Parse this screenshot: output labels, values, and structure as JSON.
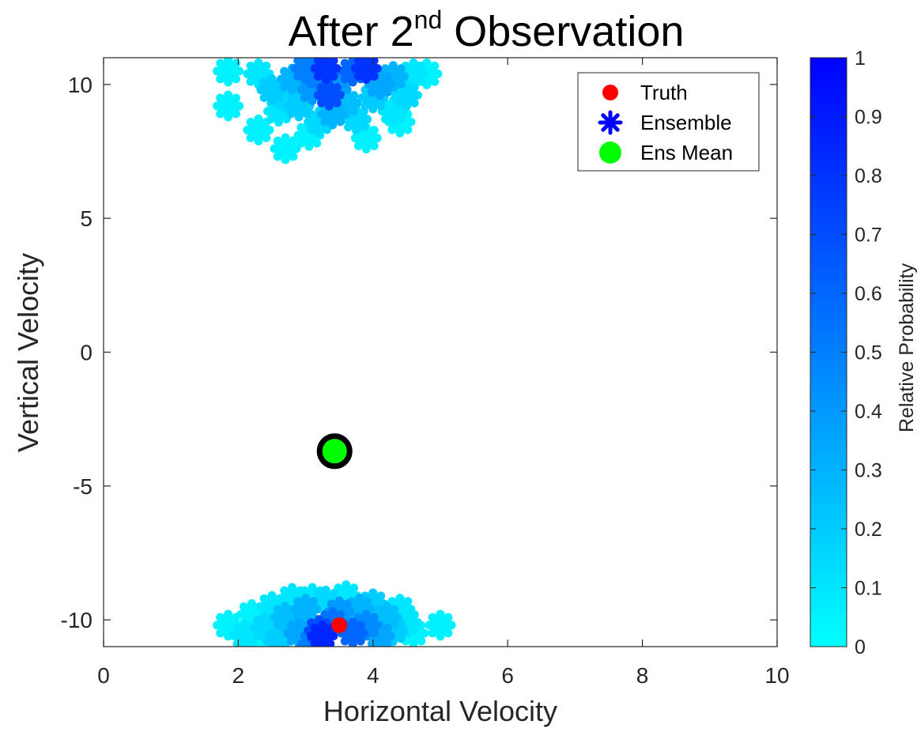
{
  "chart_data": {
    "type": "scatter",
    "title": "After 2",
    "title_superscript": "nd",
    "title_suffix": " Observation",
    "xlabel": "Horizontal Velocity",
    "ylabel": "Vertical Velocity",
    "xlim": [
      0,
      10
    ],
    "ylim": [
      -11,
      11
    ],
    "xticks": [
      0,
      2,
      4,
      6,
      8,
      10
    ],
    "yticks": [
      -10,
      -5,
      0,
      5,
      10
    ],
    "xtick_labels": [
      "0",
      "2",
      "4",
      "6",
      "8",
      "10"
    ],
    "ytick_labels": [
      "-10",
      "-5",
      "0",
      "5",
      "10"
    ],
    "grid": false,
    "legend_position": "top-right",
    "colorbar": {
      "label": "Relative Probability",
      "range": [
        0,
        1
      ],
      "ticks": [
        0,
        0.1,
        0.2,
        0.3,
        0.4,
        0.5,
        0.6,
        0.7,
        0.8,
        0.9,
        1
      ],
      "tick_labels": [
        "0",
        "0.1",
        "0.2",
        "0.3",
        "0.4",
        "0.5",
        "0.6",
        "0.7",
        "0.8",
        "0.9",
        "1"
      ],
      "color_low": "#00ffff",
      "color_high": "#0000ff"
    },
    "series": [
      {
        "name": "Truth",
        "marker": "circle",
        "color": "#ff0000",
        "points": [
          {
            "x": 3.5,
            "y": -10.2
          }
        ]
      },
      {
        "name": "Ensemble",
        "marker": "asterisk",
        "color": "#0000ff",
        "points": [
          {
            "x": 1.85,
            "y": 10.5,
            "p": 0.05
          },
          {
            "x": 1.85,
            "y": 9.2,
            "p": 0.05
          },
          {
            "x": 2.3,
            "y": 10.4,
            "p": 0.1
          },
          {
            "x": 2.5,
            "y": 9.8,
            "p": 0.2
          },
          {
            "x": 2.3,
            "y": 8.3,
            "p": 0.05
          },
          {
            "x": 2.7,
            "y": 7.6,
            "p": 0.05
          },
          {
            "x": 2.6,
            "y": 9.0,
            "p": 0.1
          },
          {
            "x": 2.8,
            "y": 10.2,
            "p": 0.3
          },
          {
            "x": 2.9,
            "y": 9.2,
            "p": 0.2
          },
          {
            "x": 3.0,
            "y": 10.6,
            "p": 0.5
          },
          {
            "x": 3.05,
            "y": 8.1,
            "p": 0.05
          },
          {
            "x": 3.1,
            "y": 9.8,
            "p": 0.4
          },
          {
            "x": 3.2,
            "y": 8.6,
            "p": 0.15
          },
          {
            "x": 3.3,
            "y": 10.6,
            "p": 0.8
          },
          {
            "x": 3.35,
            "y": 9.6,
            "p": 0.7
          },
          {
            "x": 3.4,
            "y": 8.9,
            "p": 0.3
          },
          {
            "x": 3.5,
            "y": 10.1,
            "p": 0.4
          },
          {
            "x": 3.6,
            "y": 9.3,
            "p": 0.25
          },
          {
            "x": 3.7,
            "y": 10.5,
            "p": 0.6
          },
          {
            "x": 3.75,
            "y": 8.7,
            "p": 0.15
          },
          {
            "x": 3.9,
            "y": 10.6,
            "p": 0.8
          },
          {
            "x": 3.9,
            "y": 8.0,
            "p": 0.05
          },
          {
            "x": 4.0,
            "y": 9.5,
            "p": 0.2
          },
          {
            "x": 4.1,
            "y": 10.0,
            "p": 0.35
          },
          {
            "x": 4.3,
            "y": 9.0,
            "p": 0.1
          },
          {
            "x": 4.3,
            "y": 10.3,
            "p": 0.3
          },
          {
            "x": 4.5,
            "y": 9.6,
            "p": 0.15
          },
          {
            "x": 4.6,
            "y": 10.4,
            "p": 0.1
          },
          {
            "x": 4.8,
            "y": 10.4,
            "p": 0.05
          },
          {
            "x": 4.4,
            "y": 8.6,
            "p": 0.05
          },
          {
            "x": 3.2,
            "y": 10.3,
            "p": 0.5
          },
          {
            "x": 2.7,
            "y": 9.5,
            "p": 0.15
          },
          {
            "x": 1.85,
            "y": -10.2,
            "p": 0.05
          },
          {
            "x": 2.1,
            "y": -10.6,
            "p": 0.1
          },
          {
            "x": 2.2,
            "y": -9.8,
            "p": 0.05
          },
          {
            "x": 2.4,
            "y": -10.3,
            "p": 0.15
          },
          {
            "x": 2.5,
            "y": -9.5,
            "p": 0.1
          },
          {
            "x": 2.6,
            "y": -10.8,
            "p": 0.2
          },
          {
            "x": 2.7,
            "y": -9.9,
            "p": 0.25
          },
          {
            "x": 2.8,
            "y": -9.2,
            "p": 0.1
          },
          {
            "x": 2.9,
            "y": -10.5,
            "p": 0.35
          },
          {
            "x": 3.0,
            "y": -9.6,
            "p": 0.3
          },
          {
            "x": 3.1,
            "y": -10.9,
            "p": 0.5
          },
          {
            "x": 3.2,
            "y": -10.4,
            "p": 0.7
          },
          {
            "x": 3.25,
            "y": -10.6,
            "p": 0.85
          },
          {
            "x": 3.3,
            "y": -9.3,
            "p": 0.15
          },
          {
            "x": 3.4,
            "y": -10.1,
            "p": 0.55
          },
          {
            "x": 3.5,
            "y": -9.7,
            "p": 0.4
          },
          {
            "x": 3.6,
            "y": -9.1,
            "p": 0.1
          },
          {
            "x": 3.7,
            "y": -10.5,
            "p": 0.6
          },
          {
            "x": 3.8,
            "y": -9.6,
            "p": 0.3
          },
          {
            "x": 3.9,
            "y": -10.2,
            "p": 0.45
          },
          {
            "x": 4.0,
            "y": -9.4,
            "p": 0.2
          },
          {
            "x": 4.1,
            "y": -10.6,
            "p": 0.35
          },
          {
            "x": 4.2,
            "y": -9.9,
            "p": 0.25
          },
          {
            "x": 4.3,
            "y": -10.4,
            "p": 0.2
          },
          {
            "x": 4.4,
            "y": -9.6,
            "p": 0.1
          },
          {
            "x": 4.5,
            "y": -10.1,
            "p": 0.1
          },
          {
            "x": 4.6,
            "y": -10.5,
            "p": 0.05
          },
          {
            "x": 5.0,
            "y": -10.2,
            "p": 0.05
          },
          {
            "x": 3.1,
            "y": -9.2,
            "p": 0.1
          },
          {
            "x": 2.4,
            "y": -10.9,
            "p": 0.05
          }
        ]
      },
      {
        "name": "Ens Mean",
        "marker": "circle",
        "color": "#00ff00",
        "edge_color": "#000000",
        "points": [
          {
            "x": 3.43,
            "y": -3.7
          }
        ]
      }
    ]
  }
}
